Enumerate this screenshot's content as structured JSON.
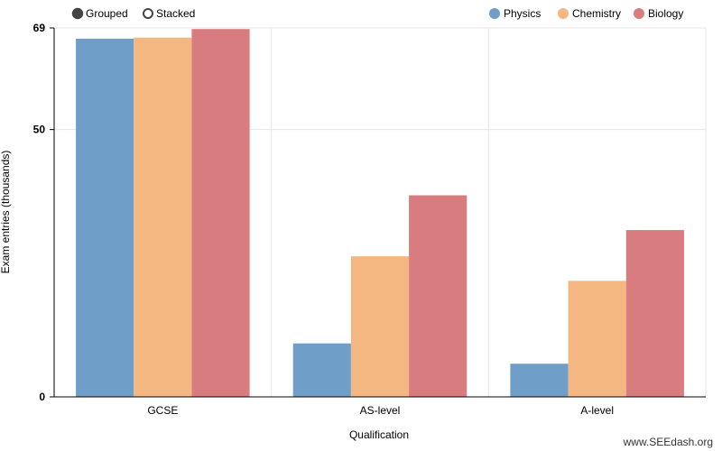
{
  "controls": {
    "mode_options": [
      {
        "label": "Grouped",
        "selected": true
      },
      {
        "label": "Stacked",
        "selected": false
      }
    ]
  },
  "credit": "www.SEEdash.org",
  "chart_data": {
    "type": "bar",
    "mode": "grouped",
    "categories": [
      "GCSE",
      "AS-level",
      "A-level"
    ],
    "series": [
      {
        "name": "Physics",
        "color": "#6f9fc9",
        "values": [
          67,
          10,
          6.2
        ]
      },
      {
        "name": "Chemistry",
        "color": "#f5b782",
        "values": [
          67.2,
          26.3,
          21.7
        ]
      },
      {
        "name": "Biology",
        "color": "#d97c7f",
        "values": [
          68.8,
          37.7,
          31.2
        ]
      }
    ],
    "xlabel": "Qualification",
    "ylabel": "Exam entries (thousands)",
    "ylim": [
      0,
      69
    ],
    "yticks": [
      0,
      50,
      69
    ],
    "grid": true,
    "legend_position": "top-right"
  }
}
